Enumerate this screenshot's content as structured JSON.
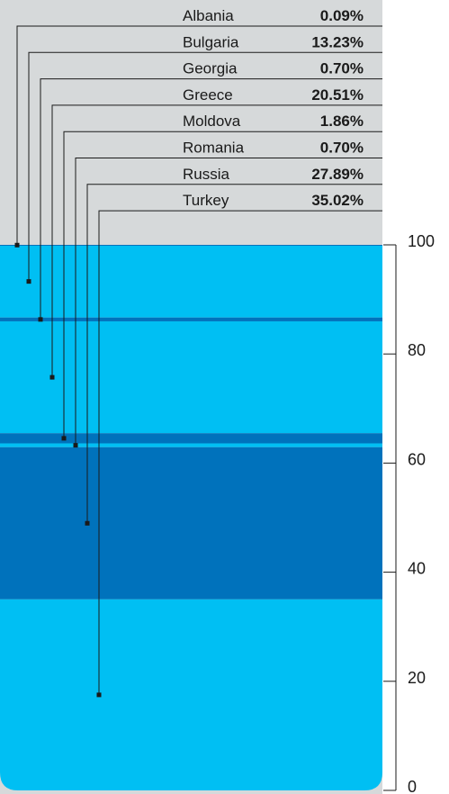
{
  "chart_data": {
    "type": "stacked-bar",
    "series": [
      {
        "name": "Albania",
        "value_label": "0.09%",
        "value": 0.09,
        "color": "#00bff3"
      },
      {
        "name": "Bulgaria",
        "value_label": "13.23%",
        "value": 13.23,
        "color": "#00bff3"
      },
      {
        "name": "Georgia",
        "value_label": "0.70%",
        "value": 0.7,
        "color": "#0072bc"
      },
      {
        "name": "Greece",
        "value_label": "20.51%",
        "value": 20.51,
        "color": "#00bff3"
      },
      {
        "name": "Moldova",
        "value_label": "1.86%",
        "value": 1.86,
        "color": "#0072bc"
      },
      {
        "name": "Romania",
        "value_label": "0.70%",
        "value": 0.7,
        "color": "#00bff3"
      },
      {
        "name": "Russia",
        "value_label": "27.89%",
        "value": 27.89,
        "color": "#0072bc"
      },
      {
        "name": "Turkey",
        "value_label": "35.02%",
        "value": 35.02,
        "color": "#00bff3"
      }
    ],
    "y_ticks": [
      "0",
      "20",
      "40",
      "60",
      "80",
      "100"
    ],
    "ylim": [
      0,
      100
    ],
    "colors": {
      "background": "#d6d9da",
      "leader": "#1a1a1a",
      "axis": "#1a1a1a"
    }
  }
}
